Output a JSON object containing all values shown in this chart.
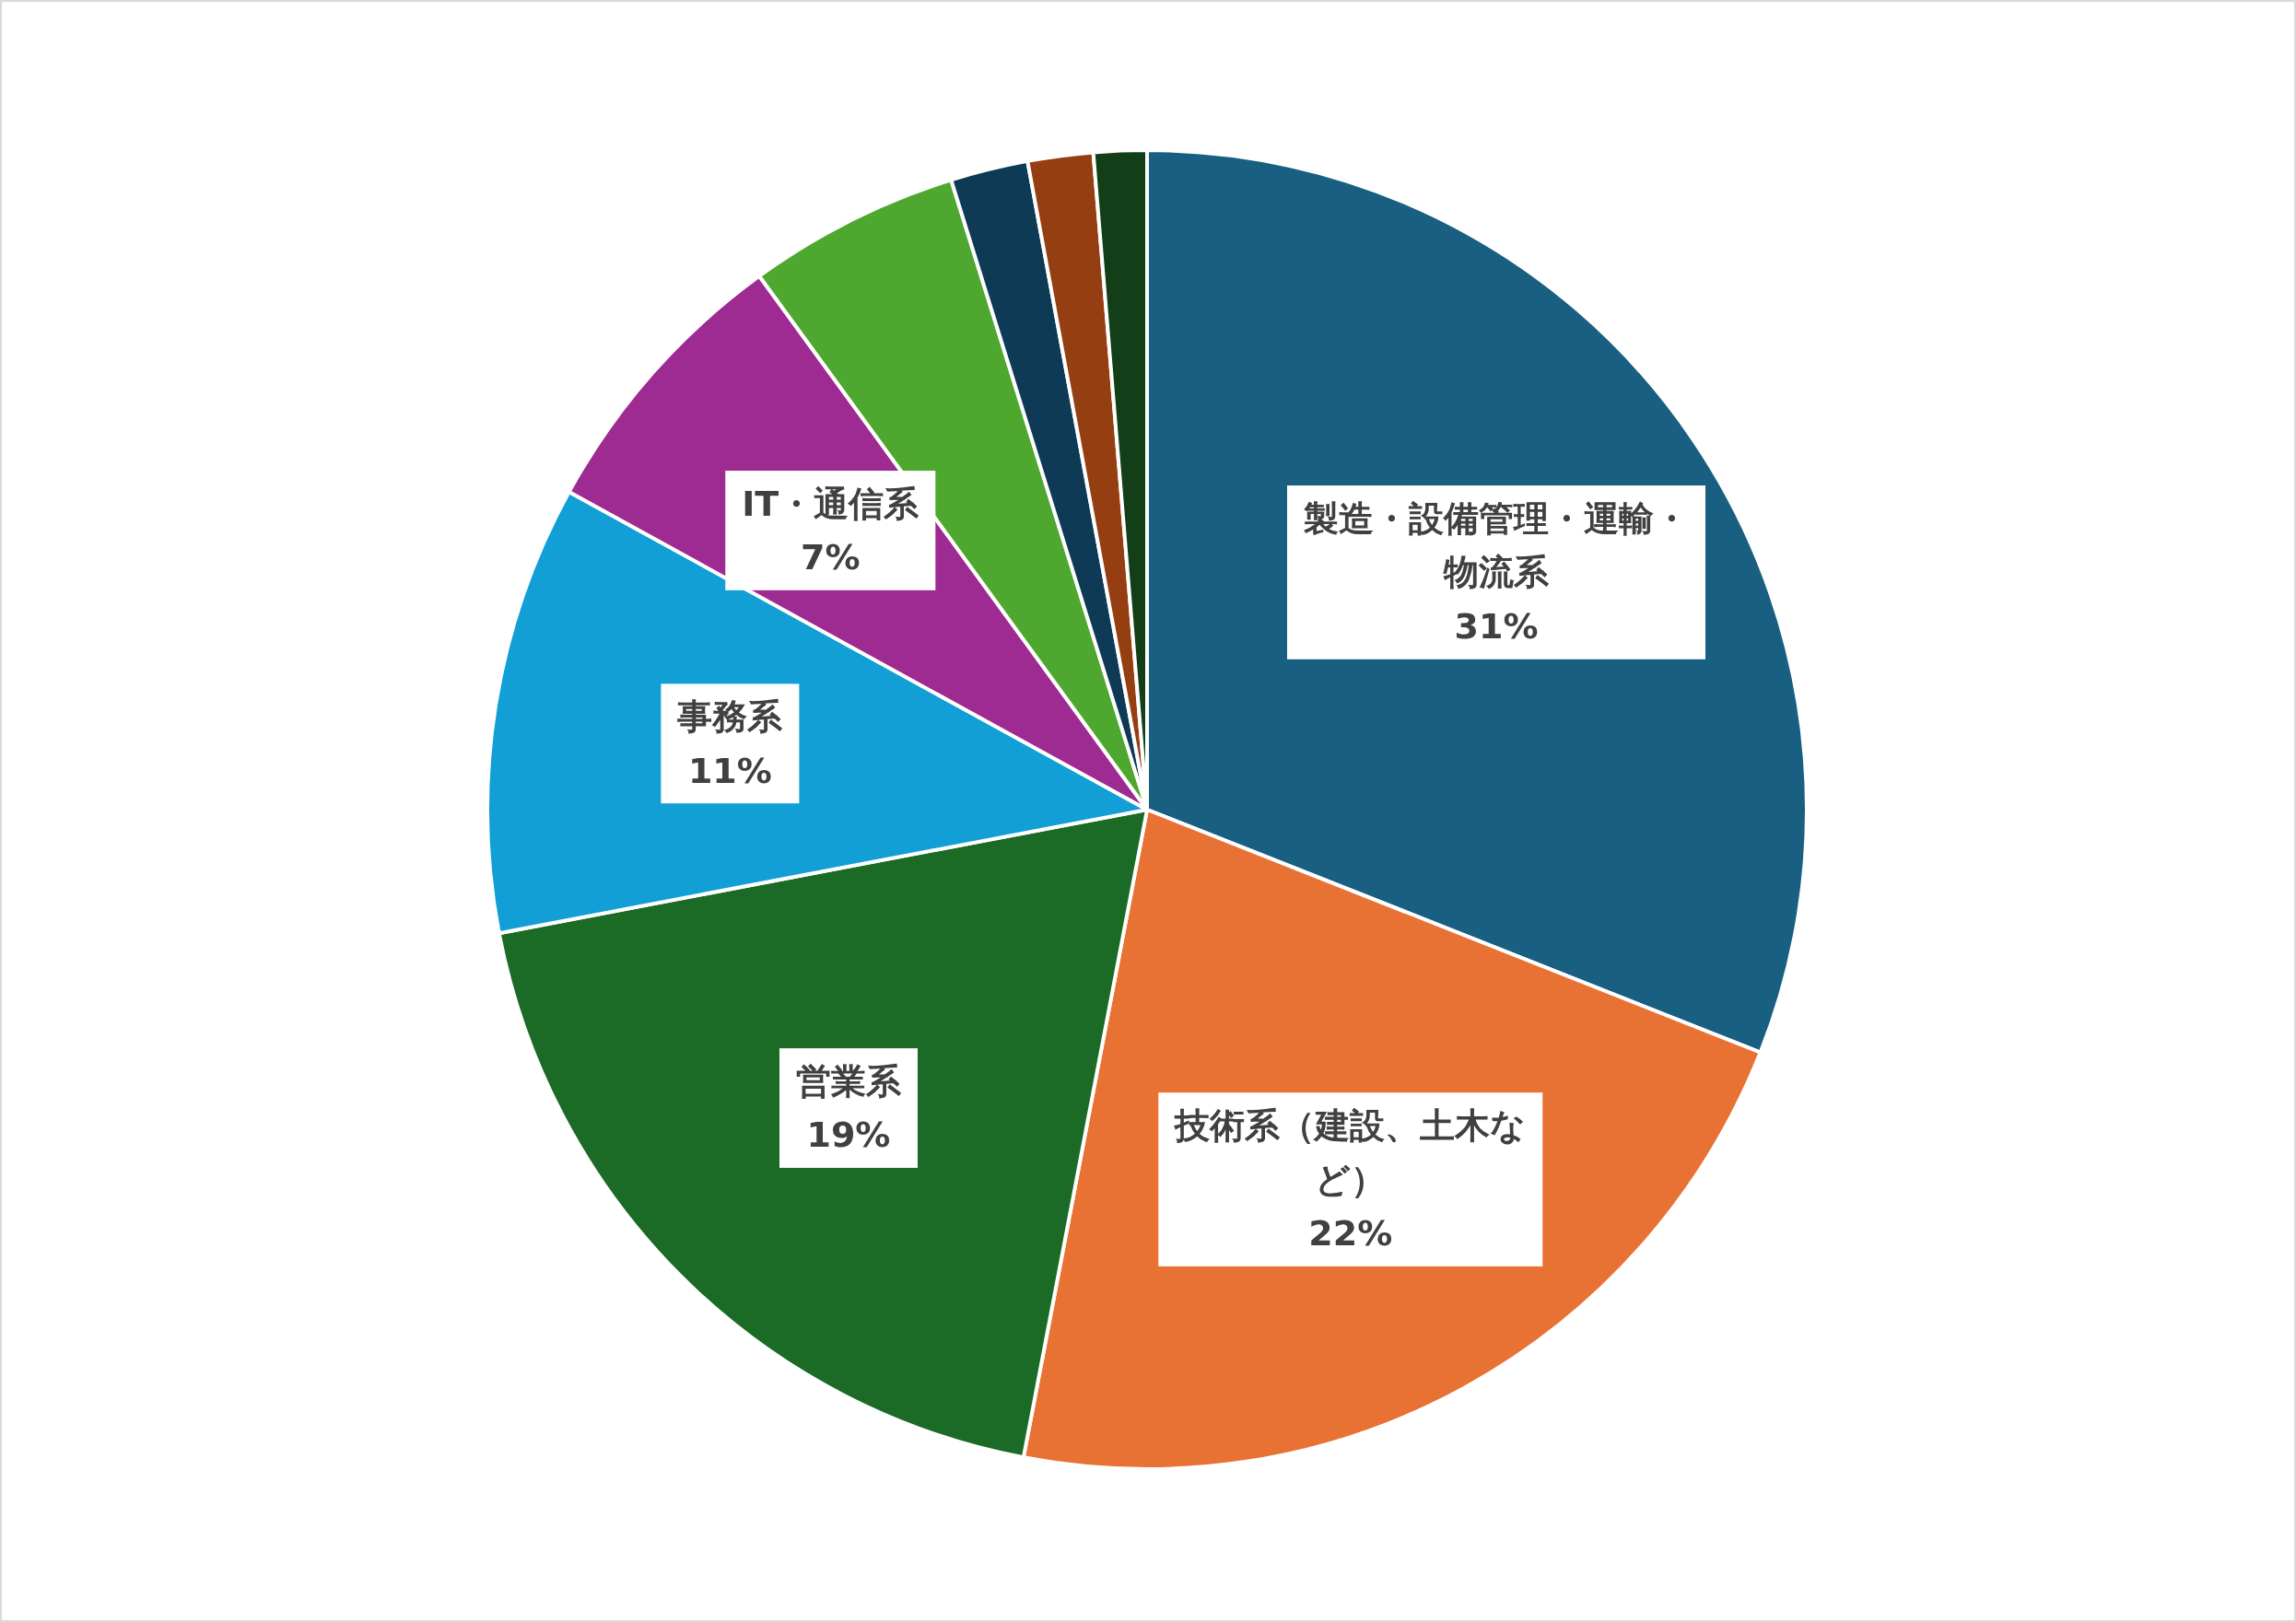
{
  "chart_data": {
    "type": "pie",
    "categories": [
      "製造・設備管理・運輸・物流系",
      "技術系（建設、土木など）",
      "営業系",
      "事務系",
      "IT・通信系",
      null,
      null,
      null,
      null
    ],
    "values": [
      31,
      22,
      19,
      11,
      7,
      5.2,
      1.9,
      1.6,
      1.3
    ],
    "colors": [
      "#185f82",
      "#e87234",
      "#1b6a25",
      "#119fd6",
      "#9e2b91",
      "#4ea72e",
      "#0e3a55",
      "#953e12",
      "#123f18"
    ],
    "value_labels": [
      "31%",
      "22%",
      "19%",
      "11%",
      "7%",
      null,
      null,
      null,
      null
    ]
  }
}
